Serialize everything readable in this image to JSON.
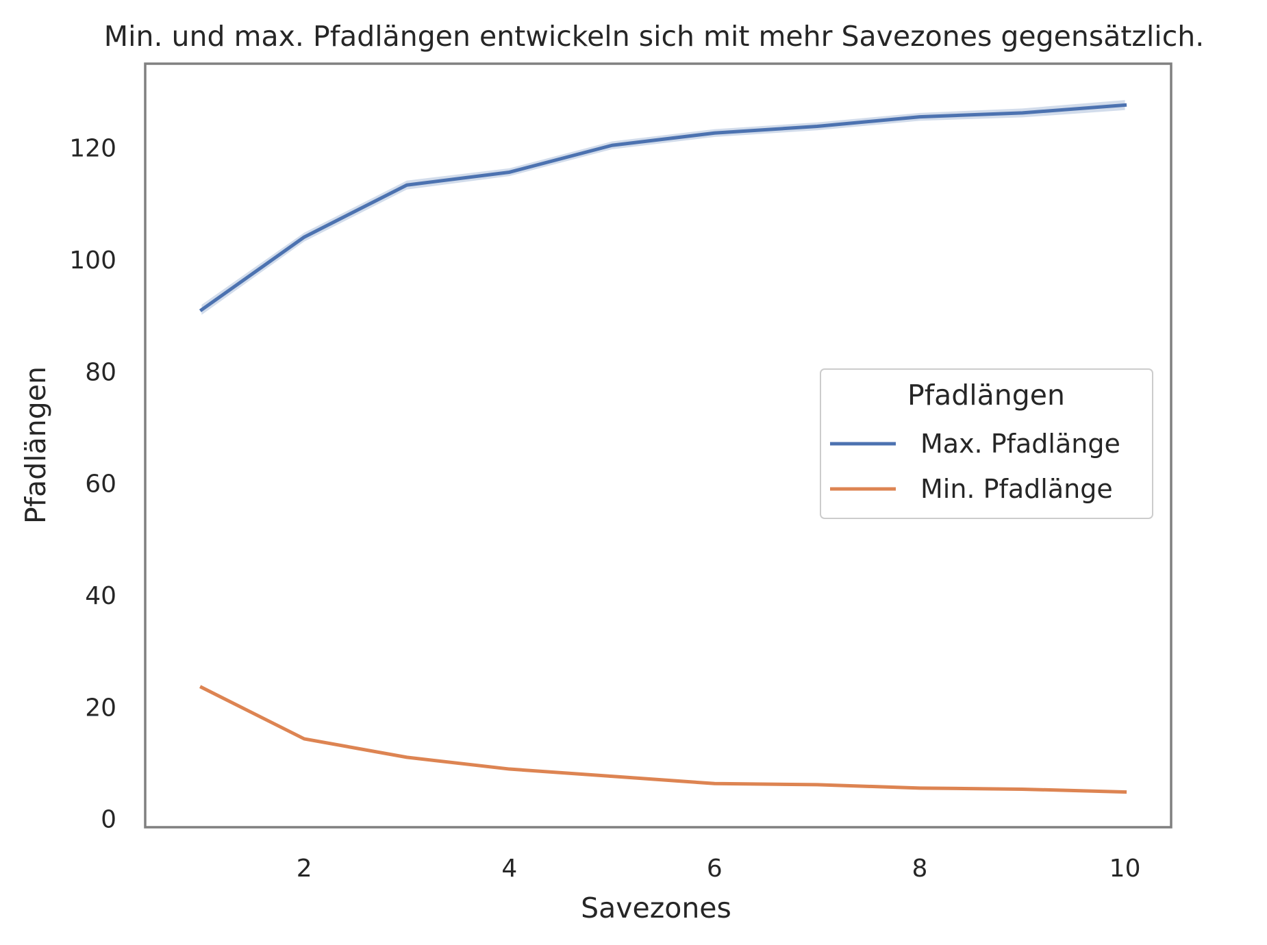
{
  "chart_data": {
    "type": "line",
    "title": "Min. und max. Pfadlängen entwickeln sich mit mehr Savezones gegensätzlich.",
    "xlabel": "Savezones",
    "ylabel": "Pfadlängen",
    "xlim": [
      0.45,
      10.45
    ],
    "ylim": [
      -1.5,
      135
    ],
    "xticks": [
      2,
      4,
      6,
      8,
      10
    ],
    "yticks": [
      0,
      20,
      40,
      60,
      80,
      100,
      120
    ],
    "grid": false,
    "legend": {
      "title": "Pfadlängen",
      "position": "center-right"
    },
    "x": [
      1,
      2,
      3,
      4,
      5,
      6,
      7,
      8,
      9,
      10
    ],
    "series": [
      {
        "name": "Max. Pfadlänge",
        "color": "#4c72b0",
        "values": [
          91.0,
          104.0,
          113.3,
          115.6,
          120.4,
          122.6,
          123.8,
          125.5,
          126.2,
          127.6
        ],
        "ci_halfwidth": [
          0.9,
          0.8,
          0.8,
          0.7,
          0.7,
          0.7,
          0.7,
          0.7,
          0.8,
          0.9
        ]
      },
      {
        "name": "Min. Pfadlänge",
        "color": "#dd8452",
        "values": [
          23.5,
          14.3,
          11.0,
          8.9,
          7.6,
          6.3,
          6.1,
          5.5,
          5.3,
          4.8
        ],
        "ci_halfwidth": [
          0.3,
          0.3,
          0.2,
          0.2,
          0.2,
          0.2,
          0.2,
          0.2,
          0.2,
          0.2
        ]
      }
    ]
  }
}
